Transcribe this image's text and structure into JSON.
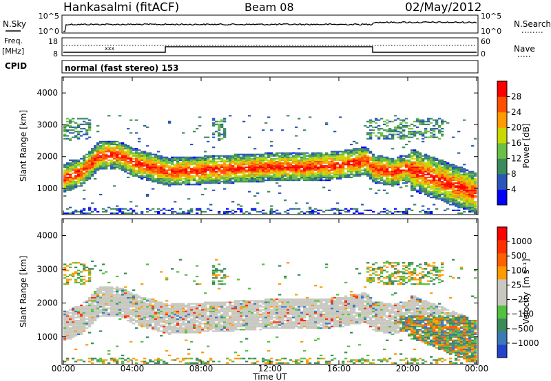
{
  "header": {
    "station": "Hankasalmi (fitACF)",
    "beam": "Beam 08",
    "date": "02/May/2012"
  },
  "top_panel": {
    "left_label": "N.Sky",
    "right_label": "N.Search",
    "left_ticks": [
      "10^5",
      "10^0"
    ],
    "right_ticks": [
      "10^5",
      "10^0"
    ]
  },
  "freq_panel": {
    "left_label_line1": "Freq.",
    "left_label_line2": "[MHz]",
    "right_label": "Nave",
    "left_ticks": [
      "18",
      "8"
    ],
    "right_ticks": [
      "60",
      "0"
    ]
  },
  "cpid_panel": {
    "label": "CPID",
    "text": "normal (fast stereo) 153"
  },
  "colors": {
    "power_scale": [
      "#0000ff",
      "#2a56b8",
      "#3a8a5a",
      "#6bbf45",
      "#c8d800",
      "#ff9a00",
      "#ff5000",
      "#ff0000"
    ],
    "velocity_scale": [
      "#2244cc",
      "#3a78b8",
      "#3a8a5a",
      "#55c040",
      "#c8c8c0",
      "#c8c8c0",
      "#ff9a00",
      "#ff6000",
      "#ff3000",
      "#ff0000"
    ]
  },
  "chart_data": [
    {
      "type": "heatmap",
      "name": "power",
      "ylabel": "Slant Range [km]",
      "ylim": [
        180,
        4500
      ],
      "yticks": [
        "1000",
        "2000",
        "3000",
        "4000"
      ],
      "xticks": [
        "00:00",
        "04:00",
        "08:00",
        "12:00",
        "16:00",
        "20:00",
        "00:00"
      ],
      "colorbar_label": "Power [dB]",
      "colorbar_ticks": [
        "28",
        "24",
        "20",
        "16",
        "12",
        "8",
        "4"
      ],
      "colorbar_range": [
        0,
        32
      ],
      "main_echo_band": {
        "hours": [
          0,
          1,
          2,
          3,
          4,
          5,
          6,
          8,
          10,
          12,
          14,
          16,
          17.5,
          18,
          19,
          20,
          21,
          22,
          23,
          24
        ],
        "center_km": [
          1300,
          1500,
          2000,
          2050,
          1800,
          1650,
          1500,
          1550,
          1600,
          1650,
          1650,
          1700,
          1850,
          1600,
          1500,
          1600,
          1400,
          1200,
          1000,
          800
        ]
      }
    },
    {
      "type": "heatmap",
      "name": "velocity",
      "ylabel": "Slant Range [km]",
      "ylim": [
        180,
        4500
      ],
      "yticks": [
        "1000",
        "2000",
        "3000",
        "4000"
      ],
      "xticks": [
        "00:00",
        "04:00",
        "08:00",
        "12:00",
        "16:00",
        "20:00",
        "00:00"
      ],
      "xlabel": "Time UT",
      "colorbar_label": "Velocity",
      "colorbar_unit": "[m s⁻¹]",
      "colorbar_ticks": [
        "1000",
        "500",
        "100",
        "25",
        "−25",
        "−100",
        "−500",
        "−1000"
      ]
    }
  ]
}
